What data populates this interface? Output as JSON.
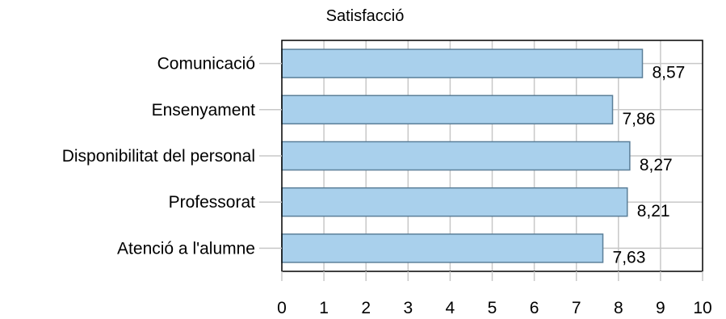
{
  "chart_data": {
    "type": "bar",
    "orientation": "horizontal",
    "title": "Satisfacció",
    "xlabel": "",
    "ylabel": "",
    "categories": [
      "Comunicació",
      "Ensenyament",
      "Disponibilitat del personal",
      "Professorat",
      "Atenció a l'alumne"
    ],
    "values": [
      8.57,
      7.86,
      8.27,
      8.21,
      7.63
    ],
    "value_labels": [
      "8,57",
      "7,86",
      "8,27",
      "8,21",
      "7,63"
    ],
    "xlim": [
      0,
      10
    ],
    "x_ticks": [
      "0",
      "1",
      "2",
      "3",
      "4",
      "5",
      "6",
      "7",
      "8",
      "9",
      "10"
    ],
    "grid": true,
    "legend": "none",
    "colors": {
      "bar_fill": "#a9d0ec",
      "bar_stroke": "#5b7f99",
      "grid": "#c8c8c8",
      "axis": "#000000"
    }
  }
}
